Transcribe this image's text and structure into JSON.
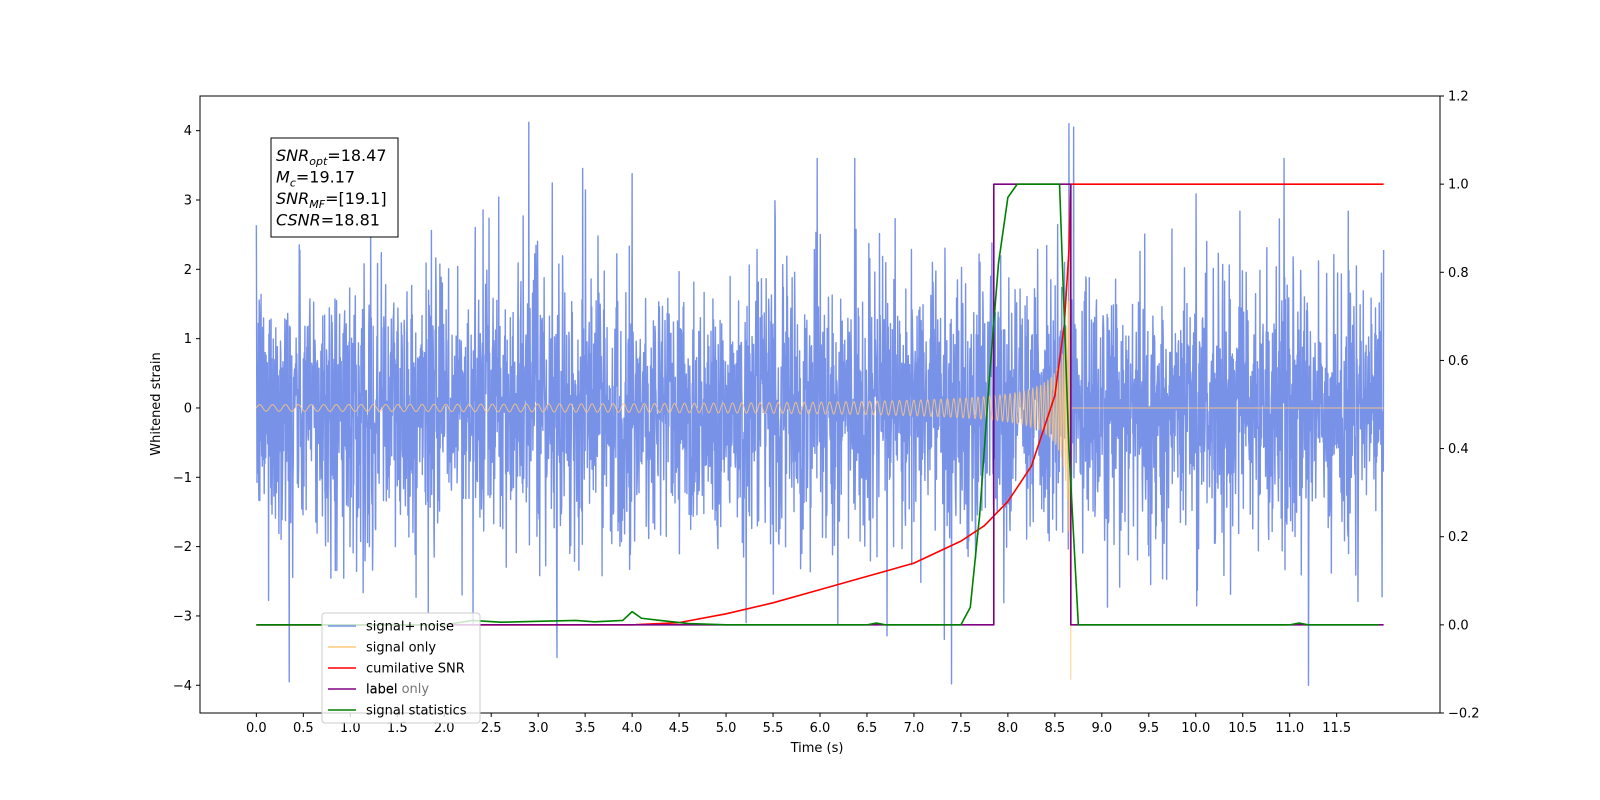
{
  "chart_data": {
    "type": "line",
    "xlabel": "Time (s)",
    "ylabel": "Whitened strain",
    "xlim": [
      -0.6,
      12.6
    ],
    "ylim": [
      -4.4,
      4.5
    ],
    "y2lim": [
      -0.2,
      1.2
    ],
    "xticks": [
      "0.0",
      "0.5",
      "1.0",
      "1.5",
      "2.0",
      "2.5",
      "3.0",
      "3.5",
      "4.0",
      "4.5",
      "5.0",
      "5.5",
      "6.0",
      "6.5",
      "7.0",
      "7.5",
      "8.0",
      "8.5",
      "9.0",
      "9.5",
      "10.0",
      "10.5",
      "11.0",
      "11.5"
    ],
    "yticks": [
      "−4",
      "−3",
      "−2",
      "−1",
      "0",
      "1",
      "2",
      "3",
      "4"
    ],
    "y2ticks": [
      "−0.2",
      "0.0",
      "0.2",
      "0.4",
      "0.6",
      "0.8",
      "1.0",
      "1.2"
    ],
    "annotation": {
      "lines": [
        {
          "base": "SNR",
          "sub": "opt",
          "rest": "=18.47"
        },
        {
          "base": "M",
          "sub": "c",
          "rest": "=19.17"
        },
        {
          "base": "SNR",
          "sub": "MF",
          "rest": "=[19.1]"
        },
        {
          "base": "CSNR",
          "sub": "",
          "rest": "=18.81"
        }
      ]
    },
    "legend": {
      "placement": "lower-left",
      "entries": [
        {
          "label": "signal+ noise",
          "color": "#7892e8"
        },
        {
          "label": "signal only",
          "color": "#ffc87a"
        },
        {
          "label": "cumilative SNR",
          "color": "#ff0000"
        },
        {
          "label": "label",
          "color": "#800080"
        },
        {
          "label": "signal statistics",
          "color": "#008000"
        }
      ],
      "ghost_text": "label only"
    },
    "series": [
      {
        "name": "signal+ noise",
        "axis": "left",
        "kind": "noise",
        "color": "#7892e8",
        "x_range": [
          0.0,
          12.0
        ],
        "sigma": 1.0,
        "envelope_peaks": [
          {
            "x": 0.35,
            "y": -3.95
          },
          {
            "x": 2.9,
            "y": 4.12
          },
          {
            "x": 4.0,
            "y": 3.38
          },
          {
            "x": 7.4,
            "y": -3.98
          },
          {
            "x": 8.65,
            "y": 4.1
          },
          {
            "x": 8.7,
            "y": 4.05
          },
          {
            "x": 11.2,
            "y": -4.0
          },
          {
            "x": 3.2,
            "y": -3.6
          }
        ]
      },
      {
        "name": "signal only",
        "axis": "left",
        "kind": "chirp",
        "color": "#ffc87a",
        "x_range": [
          0.0,
          12.0
        ],
        "merger_time": 8.67,
        "amplitude_early": 0.02,
        "amplitude_at_merger": 3.8,
        "min_value": -3.92
      },
      {
        "name": "cumilative SNR",
        "axis": "right",
        "color": "#ff0000",
        "x": [
          0.0,
          4.0,
          4.5,
          5.0,
          5.5,
          6.0,
          6.5,
          7.0,
          7.5,
          7.75,
          8.0,
          8.25,
          8.5,
          8.6,
          8.65,
          8.67,
          12.0
        ],
        "y": [
          0.0,
          0.0,
          0.005,
          0.025,
          0.05,
          0.08,
          0.11,
          0.14,
          0.19,
          0.225,
          0.28,
          0.36,
          0.52,
          0.68,
          0.85,
          1.0,
          1.0
        ]
      },
      {
        "name": "label",
        "axis": "right",
        "color": "#800080",
        "x": [
          0.0,
          7.85,
          7.85,
          8.67,
          8.67,
          12.0
        ],
        "y": [
          0.0,
          0.0,
          1.0,
          1.0,
          0.0,
          0.0
        ]
      },
      {
        "name": "signal statistics",
        "axis": "right",
        "color": "#008000",
        "x": [
          0.0,
          2.0,
          2.3,
          2.6,
          3.0,
          3.4,
          3.6,
          3.9,
          4.0,
          4.1,
          4.3,
          4.6,
          5.0,
          6.5,
          6.6,
          6.7,
          7.5,
          7.6,
          7.7,
          7.8,
          7.9,
          8.0,
          8.1,
          8.2,
          8.55,
          8.65,
          8.75,
          11.0,
          11.1,
          11.2,
          11.95
        ],
        "y": [
          0.0,
          0.0,
          0.01,
          0.006,
          0.008,
          0.01,
          0.007,
          0.01,
          0.03,
          0.015,
          0.01,
          0.003,
          0.0,
          0.0,
          0.004,
          0.0,
          0.0,
          0.04,
          0.25,
          0.55,
          0.82,
          0.97,
          1.0,
          1.0,
          1.0,
          0.4,
          0.0,
          0.0,
          0.004,
          0.0,
          0.0
        ]
      }
    ]
  }
}
